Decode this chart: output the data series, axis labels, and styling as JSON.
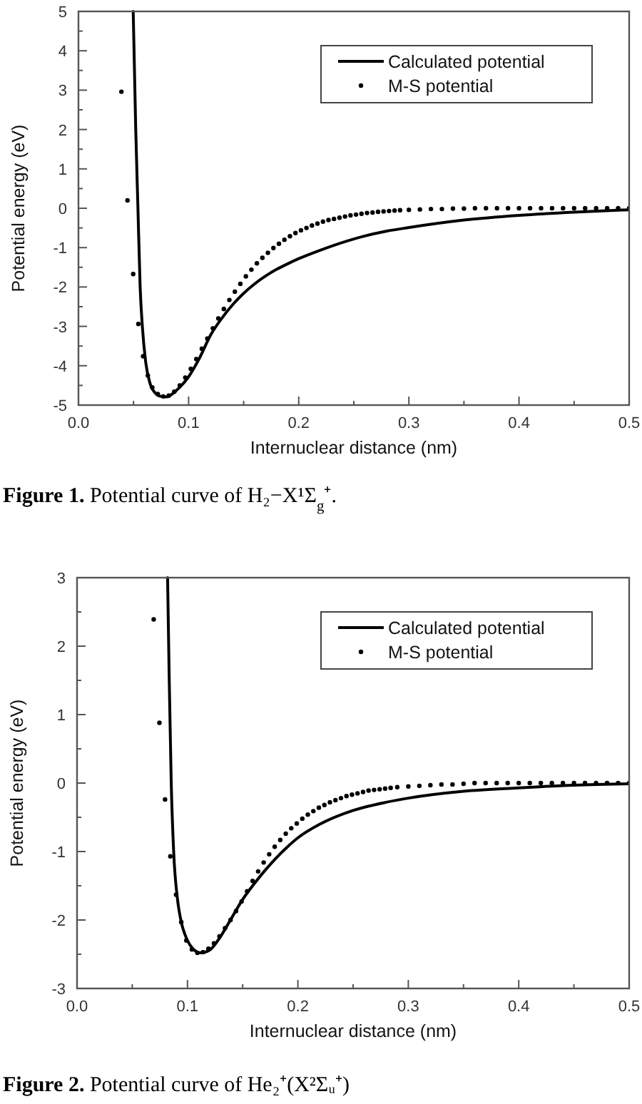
{
  "chart_data": [
    {
      "type": "line",
      "xlabel": "Internuclear distance (nm)",
      "ylabel": "Potential energy (eV)",
      "xlim": [
        0,
        0.5
      ],
      "ylim": [
        -5,
        5
      ],
      "xticks": [
        {
          "value": 0,
          "label": "0.0"
        },
        {
          "value": 0.05,
          "label": null
        },
        {
          "value": 0.1,
          "label": "0.1"
        },
        {
          "value": 0.15,
          "label": null
        },
        {
          "value": 0.2,
          "label": "0.2"
        },
        {
          "value": 0.25,
          "label": null
        },
        {
          "value": 0.3,
          "label": "0.3"
        },
        {
          "value": 0.35,
          "label": null
        },
        {
          "value": 0.4,
          "label": "0.4"
        },
        {
          "value": 0.45,
          "label": null
        },
        {
          "value": 0.5,
          "label": "0.5"
        }
      ],
      "yticks": [
        -5,
        {
          "value": -4.5,
          "label": null
        },
        -4,
        {
          "value": -3.5,
          "label": null
        },
        -3,
        {
          "value": -2.5,
          "label": null
        },
        -2,
        {
          "value": -1.5,
          "label": null
        },
        -1,
        {
          "value": -0.5,
          "label": null
        },
        0,
        {
          "value": 0.5,
          "label": null
        },
        1,
        {
          "value": 1.5,
          "label": null
        },
        2,
        {
          "value": 2.5,
          "label": null
        },
        3,
        {
          "value": 3.5,
          "label": null
        },
        4,
        {
          "value": 4.5,
          "label": null
        },
        5
      ],
      "legend": "top right",
      "grid": false,
      "series": [
        {
          "name": "Calculated potential",
          "color": "#000000",
          "line_style": "solid",
          "x": [
            0.0497,
            0.052,
            0.054,
            0.056,
            0.058,
            0.061,
            0.065,
            0.07,
            0.075,
            0.08,
            0.085,
            0.09,
            0.1,
            0.11,
            0.12,
            0.13,
            0.14,
            0.15,
            0.16,
            0.17,
            0.18,
            0.19,
            0.2,
            0.22,
            0.25,
            0.28,
            0.3,
            0.35,
            0.4,
            0.45,
            0.5
          ],
          "values": [
            5,
            2,
            0,
            -2,
            -3,
            -3.9,
            -4.45,
            -4.7,
            -4.78,
            -4.79,
            -4.72,
            -4.6,
            -4.28,
            -3.8,
            -3.22,
            -2.8,
            -2.45,
            -2.16,
            -1.92,
            -1.72,
            -1.55,
            -1.41,
            -1.28,
            -1.06,
            -0.78,
            -0.58,
            -0.49,
            -0.3,
            -0.18,
            -0.1,
            -0.04
          ]
        },
        {
          "name": "M-S potential",
          "type": "scatter",
          "color": "#000000",
          "marker": "circle",
          "x": [
            0.039,
            0.0445,
            0.0497,
            0.0544,
            0.0587,
            0.063,
            0.067,
            0.072,
            0.077,
            0.082,
            0.087,
            0.092,
            0.097,
            0.102,
            0.107,
            0.112,
            0.117,
            0.122,
            0.127,
            0.132,
            0.137,
            0.142,
            0.147,
            0.152,
            0.157,
            0.162,
            0.167,
            0.172,
            0.177,
            0.182,
            0.187,
            0.192,
            0.197,
            0.202,
            0.207,
            0.212,
            0.217,
            0.222,
            0.227,
            0.232,
            0.237,
            0.242,
            0.247,
            0.252,
            0.257,
            0.262,
            0.267,
            0.272,
            0.277,
            0.282,
            0.287,
            0.292,
            0.3,
            0.31,
            0.32,
            0.33,
            0.34,
            0.35,
            0.36,
            0.37,
            0.38,
            0.39,
            0.4,
            0.41,
            0.42,
            0.43,
            0.44,
            0.45,
            0.46,
            0.47,
            0.48,
            0.49,
            0.5
          ],
          "values": [
            2.96,
            0.2,
            -1.67,
            -2.94,
            -3.76,
            -4.25,
            -4.55,
            -4.72,
            -4.78,
            -4.76,
            -4.66,
            -4.5,
            -4.3,
            -4.08,
            -3.83,
            -3.57,
            -3.31,
            -3.05,
            -2.8,
            -2.56,
            -2.33,
            -2.12,
            -1.92,
            -1.73,
            -1.56,
            -1.4,
            -1.26,
            -1.13,
            -1.01,
            -0.9,
            -0.8,
            -0.71,
            -0.63,
            -0.56,
            -0.5,
            -0.44,
            -0.39,
            -0.34,
            -0.3,
            -0.27,
            -0.24,
            -0.21,
            -0.18,
            -0.16,
            -0.14,
            -0.12,
            -0.11,
            -0.09,
            -0.08,
            -0.07,
            -0.06,
            -0.05,
            -0.04,
            -0.03,
            -0.02,
            -0.02,
            -0.01,
            -0.01,
            0,
            0,
            0,
            0,
            0,
            0,
            0,
            0,
            0,
            0,
            0,
            0,
            0,
            0,
            0
          ]
        }
      ],
      "annotations": [
        "Figure 1. Potential curve of H₂−X¹Σ$_{g}$⁺."
      ]
    },
    {
      "type": "line",
      "xlabel": "Internuclear distance (nm)",
      "ylabel": "Potential energy (eV)",
      "xlim": [
        0,
        0.5
      ],
      "ylim": [
        -3,
        3
      ],
      "xticks": [
        {
          "value": 0,
          "label": "0.0"
        },
        {
          "value": 0.05,
          "label": null
        },
        {
          "value": 0.1,
          "label": "0.1"
        },
        {
          "value": 0.15,
          "label": null
        },
        {
          "value": 0.2,
          "label": "0.2"
        },
        {
          "value": 0.25,
          "label": null
        },
        {
          "value": 0.3,
          "label": "0.3"
        },
        {
          "value": 0.35,
          "label": null
        },
        {
          "value": 0.4,
          "label": "0.4"
        },
        {
          "value": 0.45,
          "label": null
        },
        {
          "value": 0.5,
          "label": "0.5"
        }
      ],
      "yticks": [
        -3,
        {
          "value": -2.5,
          "label": null
        },
        -2,
        {
          "value": -1.5,
          "label": null
        },
        -1,
        {
          "value": -0.5,
          "label": null
        },
        0,
        {
          "value": 0.5,
          "label": null
        },
        1,
        {
          "value": 1.5,
          "label": null
        },
        2,
        {
          "value": 2.5,
          "label": null
        },
        3
      ],
      "legend": "top right",
      "grid": false,
      "series": [
        {
          "name": "Calculated potential",
          "color": "#000000",
          "line_style": "solid",
          "x": [
            0.082,
            0.0835,
            0.0853,
            0.0875,
            0.091,
            0.094,
            0.1,
            0.105,
            0.112,
            0.12,
            0.13,
            0.14,
            0.15,
            0.16,
            0.17,
            0.18,
            0.19,
            0.2,
            0.22,
            0.25,
            0.28,
            0.3,
            0.35,
            0.4,
            0.45,
            0.5
          ],
          "values": [
            3,
            1.5,
            0,
            -1,
            -1.7,
            -2,
            -2.3,
            -2.42,
            -2.48,
            -2.44,
            -2.24,
            -1.97,
            -1.7,
            -1.48,
            -1.28,
            -1.1,
            -0.94,
            -0.8,
            -0.6,
            -0.4,
            -0.28,
            -0.22,
            -0.12,
            -0.07,
            -0.03,
            -0.01
          ]
        },
        {
          "name": "M-S potential",
          "type": "scatter",
          "color": "#000000",
          "marker": "circle",
          "x": [
            0.0694,
            0.0746,
            0.0797,
            0.0845,
            0.0897,
            0.0944,
            0.099,
            0.104,
            0.109,
            0.114,
            0.119,
            0.124,
            0.129,
            0.134,
            0.139,
            0.144,
            0.149,
            0.154,
            0.159,
            0.164,
            0.169,
            0.174,
            0.179,
            0.184,
            0.189,
            0.194,
            0.199,
            0.204,
            0.209,
            0.214,
            0.219,
            0.224,
            0.229,
            0.234,
            0.239,
            0.244,
            0.249,
            0.254,
            0.259,
            0.264,
            0.269,
            0.274,
            0.279,
            0.284,
            0.29,
            0.3,
            0.31,
            0.32,
            0.33,
            0.34,
            0.35,
            0.36,
            0.37,
            0.38,
            0.39,
            0.4,
            0.41,
            0.42,
            0.43,
            0.44,
            0.45,
            0.46,
            0.47,
            0.48,
            0.49,
            0.5
          ],
          "values": [
            2.39,
            0.88,
            -0.24,
            -1.07,
            -1.63,
            -2.03,
            -2.3,
            -2.43,
            -2.48,
            -2.47,
            -2.42,
            -2.34,
            -2.24,
            -2.12,
            -2.0,
            -1.87,
            -1.73,
            -1.58,
            -1.43,
            -1.29,
            -1.16,
            -1.04,
            -0.93,
            -0.83,
            -0.74,
            -0.66,
            -0.59,
            -0.52,
            -0.46,
            -0.41,
            -0.36,
            -0.32,
            -0.28,
            -0.25,
            -0.22,
            -0.19,
            -0.17,
            -0.15,
            -0.13,
            -0.11,
            -0.1,
            -0.09,
            -0.08,
            -0.07,
            -0.06,
            -0.05,
            -0.04,
            -0.03,
            -0.02,
            -0.02,
            -0.01,
            0,
            0,
            0,
            0,
            0,
            0,
            0,
            0,
            0,
            0,
            0,
            0,
            0,
            0,
            0
          ]
        }
      ],
      "annotations": [
        "Figure 2. Potential curve of He₂⁺(X²Σᵤ⁺)"
      ]
    }
  ]
}
